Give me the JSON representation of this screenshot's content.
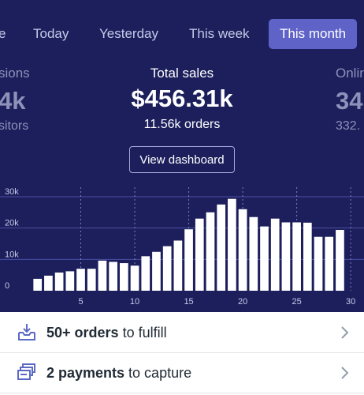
{
  "tabs": [
    {
      "label": "Today",
      "active": false
    },
    {
      "label": "Yesterday",
      "active": false
    },
    {
      "label": "This week",
      "active": false
    },
    {
      "label": "This month",
      "active": true
    }
  ],
  "tab_partial_left": "e",
  "stats": {
    "left": {
      "label": "sions",
      "value": "4k",
      "sub": "sitors"
    },
    "center": {
      "label": "Total sales",
      "value": "$456.31k",
      "sub": "11.56k orders"
    },
    "right": {
      "label": "Onlin",
      "value": "34",
      "sub": "332."
    }
  },
  "view_dashboard_label": "View dashboard",
  "chart_data": {
    "type": "bar",
    "x": [
      1,
      2,
      3,
      4,
      5,
      6,
      7,
      8,
      9,
      10,
      11,
      12,
      13,
      14,
      15,
      16,
      17,
      18,
      19,
      20,
      21,
      22,
      23,
      24,
      25,
      26,
      27,
      28,
      29,
      30
    ],
    "values": [
      3800,
      4800,
      5800,
      6200,
      7000,
      7000,
      9600,
      9200,
      8800,
      8000,
      11000,
      12400,
      14200,
      16000,
      19600,
      23000,
      25000,
      27500,
      29300,
      26000,
      23500,
      20500,
      23000,
      21800,
      21800,
      21700,
      17200,
      17200,
      19400,
      null
    ],
    "xticks": [
      "5",
      "10",
      "15",
      "20",
      "25",
      "30"
    ],
    "xtick_values": [
      5,
      10,
      15,
      20,
      25,
      30
    ],
    "yticks": [
      "30k",
      "20k",
      "10k",
      "0"
    ],
    "ytick_values": [
      30000,
      20000,
      10000,
      0
    ],
    "ylim": [
      0,
      32000
    ],
    "xlim": [
      0,
      30.5
    ],
    "grid": true
  },
  "tasks": [
    {
      "bold": "50+ orders",
      "rest": " to fulfill",
      "icon": "inbox-download-icon"
    },
    {
      "bold": "2 payments",
      "rest": " to capture",
      "icon": "cards-stack-icon"
    }
  ],
  "colors": {
    "hero_bg": "#1c1f5c",
    "accent": "#5f63c8",
    "bar": "#ffffff",
    "grid": "#4a4fa0"
  }
}
